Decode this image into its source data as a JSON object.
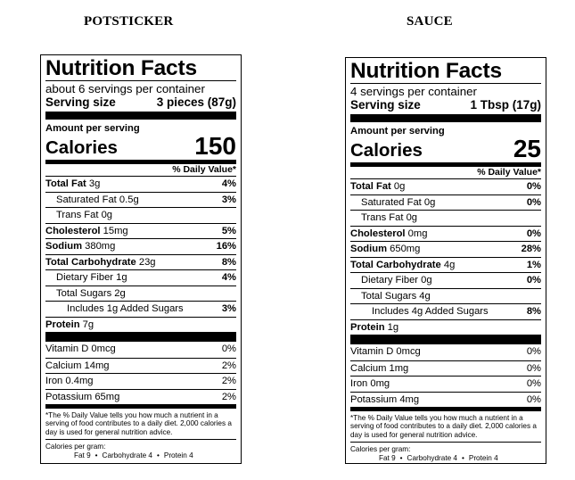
{
  "headings": {
    "left": "POTSTICKER",
    "right": "SAUCE"
  },
  "potsticker": {
    "title": "Nutrition Facts",
    "servings_per_container": "about 6 servings per container",
    "serving_size_label": "Serving size",
    "serving_size_value": "3 pieces (87g)",
    "amount_per_serving": "Amount per serving",
    "calories_label": "Calories",
    "calories_value": "150",
    "dv_header": "% Daily Value*",
    "nutrients": [
      {
        "name": "Total Fat",
        "amount": "3g",
        "pct": "4%"
      },
      {
        "name": "Saturated Fat",
        "amount": "0.5g",
        "pct": "3%"
      },
      {
        "name": "Trans Fat",
        "amount": "0g",
        "pct": ""
      },
      {
        "name": "Cholesterol",
        "amount": "15mg",
        "pct": "5%"
      },
      {
        "name": "Sodium",
        "amount": "380mg",
        "pct": "16%"
      },
      {
        "name": "Total Carbohydrate",
        "amount": "23g",
        "pct": "8%"
      },
      {
        "name": "Dietary Fiber",
        "amount": "1g",
        "pct": "4%"
      },
      {
        "name": "Total Sugars",
        "amount": "2g",
        "pct": ""
      },
      {
        "name": "Includes 1g Added Sugars",
        "amount": "",
        "pct": "3%"
      },
      {
        "name": "Protein",
        "amount": "7g",
        "pct": ""
      }
    ],
    "vitamins": [
      {
        "name": "Vitamin D 0mcg",
        "pct": "0%"
      },
      {
        "name": "Calcium 14mg",
        "pct": "2%"
      },
      {
        "name": "Iron 0.4mg",
        "pct": "2%"
      },
      {
        "name": "Potassium 65mg",
        "pct": "2%"
      }
    ],
    "footnote": "*The % Daily Value tells you how much a nutrient in a serving of food contributes to a daily diet. 2,000 calories a day is used for general nutrition advice.",
    "calories_per_gram_label": "Calories per gram:",
    "cpg_fat": "Fat 9",
    "cpg_carb": "Carbohydrate 4",
    "cpg_protein": "Protein 4",
    "bullet": "•"
  },
  "sauce": {
    "title": "Nutrition Facts",
    "servings_per_container": "4 servings per container",
    "serving_size_label": "Serving size",
    "serving_size_value": "1 Tbsp (17g)",
    "amount_per_serving": "Amount per serving",
    "calories_label": "Calories",
    "calories_value": "25",
    "dv_header": "% Daily Value*",
    "nutrients": [
      {
        "name": "Total Fat",
        "amount": "0g",
        "pct": "0%"
      },
      {
        "name": "Saturated Fat",
        "amount": "0g",
        "pct": "0%"
      },
      {
        "name": "Trans Fat",
        "amount": "0g",
        "pct": ""
      },
      {
        "name": "Cholesterol",
        "amount": "0mg",
        "pct": "0%"
      },
      {
        "name": "Sodium",
        "amount": "650mg",
        "pct": "28%"
      },
      {
        "name": "Total Carbohydrate",
        "amount": "4g",
        "pct": "1%"
      },
      {
        "name": "Dietary Fiber",
        "amount": "0g",
        "pct": "0%"
      },
      {
        "name": "Total Sugars",
        "amount": "4g",
        "pct": ""
      },
      {
        "name": "Includes 4g Added Sugars",
        "amount": "",
        "pct": "8%"
      },
      {
        "name": "Protein",
        "amount": "1g",
        "pct": ""
      }
    ],
    "vitamins": [
      {
        "name": "Vitamin D 0mcg",
        "pct": "0%"
      },
      {
        "name": "Calcium 1mg",
        "pct": "0%"
      },
      {
        "name": "Iron 0mg",
        "pct": "0%"
      },
      {
        "name": "Potassium 4mg",
        "pct": "0%"
      }
    ],
    "footnote": "*The % Daily Value tells you how much a nutrient in a serving of food contributes to a daily diet. 2,000 calories a day is used for general nutrition advice.",
    "calories_per_gram_label": "Calories per gram:",
    "cpg_fat": "Fat 9",
    "cpg_carb": "Carbohydrate 4",
    "cpg_protein": "Protein 4",
    "bullet": "•"
  }
}
